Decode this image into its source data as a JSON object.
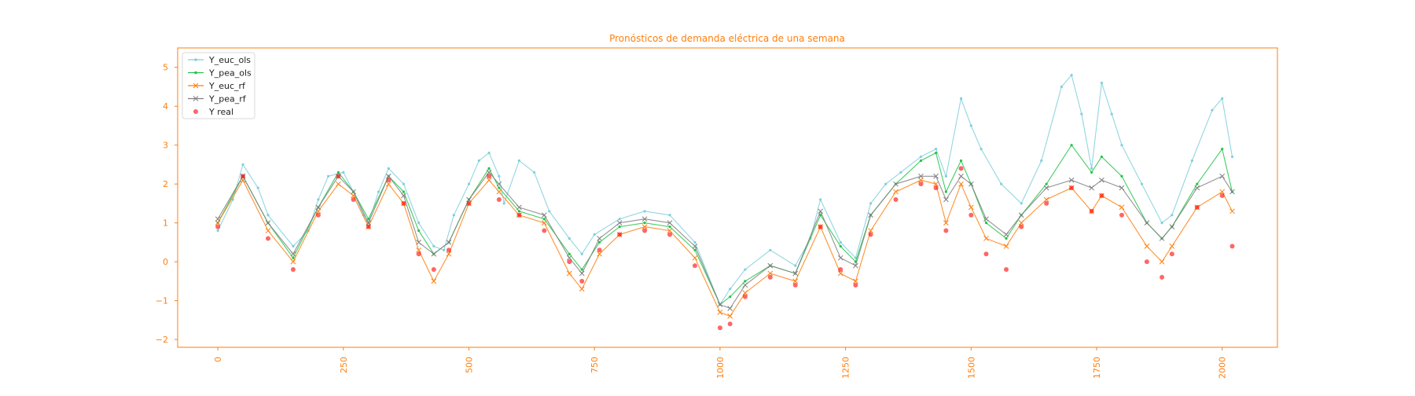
{
  "chart_data": {
    "type": "line",
    "title": "Pronósticos de demanda eléctrica de una semana",
    "xlabel": "",
    "ylabel": "",
    "xlim": [
      -80,
      2110
    ],
    "ylim": [
      -2.2,
      5.5
    ],
    "xticks": [
      0,
      250,
      500,
      750,
      1000,
      1250,
      1500,
      1750,
      2000
    ],
    "xtick_labels": [
      "0",
      "250",
      "500",
      "750",
      "1000",
      "1250",
      "1500",
      "1750",
      "2000"
    ],
    "yticks": [
      -2,
      -1,
      0,
      1,
      2,
      3,
      4,
      5
    ],
    "ytick_labels": [
      "−2",
      "−1",
      "0",
      "1",
      "2",
      "3",
      "4",
      "5"
    ],
    "grid": false,
    "legend_position": "top-left",
    "series": [
      {
        "name": "Y_euc_ols",
        "color": "#7fcfdc",
        "marker": "dot",
        "x": [
          0,
          30,
          50,
          80,
          100,
          150,
          180,
          200,
          220,
          250,
          270,
          290,
          300,
          320,
          340,
          370,
          400,
          430,
          450,
          470,
          500,
          520,
          540,
          560,
          570,
          600,
          630,
          660,
          700,
          725,
          750,
          800,
          850,
          900,
          950,
          1000,
          1020,
          1050,
          1100,
          1150,
          1180,
          1200,
          1240,
          1270,
          1300,
          1330,
          1360,
          1400,
          1430,
          1450,
          1480,
          1500,
          1520,
          1560,
          1600,
          1640,
          1680,
          1700,
          1720,
          1740,
          1760,
          1780,
          1800,
          1840,
          1880,
          1900,
          1940,
          1980,
          2000,
          2020
        ],
        "y": [
          0.8,
          1.6,
          2.5,
          1.9,
          1.2,
          0.4,
          0.8,
          1.6,
          2.2,
          2.3,
          1.8,
          1.2,
          1.0,
          1.8,
          2.4,
          2.0,
          1.0,
          0.4,
          0.3,
          1.2,
          2.0,
          2.6,
          2.8,
          2.2,
          1.5,
          2.6,
          2.3,
          1.3,
          0.6,
          0.2,
          0.7,
          1.1,
          1.3,
          1.2,
          0.5,
          -1.1,
          -0.7,
          -0.2,
          0.3,
          -0.1,
          0.6,
          1.6,
          0.5,
          0.1,
          1.5,
          2.0,
          2.3,
          2.7,
          2.9,
          2.2,
          4.2,
          3.5,
          2.9,
          2.0,
          1.5,
          2.6,
          4.5,
          4.8,
          3.8,
          2.4,
          4.6,
          3.8,
          3.0,
          2.0,
          1.0,
          1.2,
          2.6,
          3.9,
          4.2,
          2.7
        ]
      },
      {
        "name": "Y_pea_ols",
        "color": "#22c44a",
        "marker": "dot",
        "x": [
          0,
          50,
          100,
          150,
          200,
          240,
          270,
          300,
          340,
          370,
          400,
          430,
          460,
          500,
          540,
          560,
          600,
          650,
          700,
          725,
          760,
          800,
          850,
          900,
          950,
          1000,
          1020,
          1050,
          1100,
          1150,
          1200,
          1240,
          1270,
          1300,
          1350,
          1400,
          1430,
          1450,
          1480,
          1500,
          1530,
          1570,
          1600,
          1650,
          1700,
          1740,
          1760,
          1800,
          1850,
          1880,
          1900,
          1950,
          2000,
          2020
        ],
        "y": [
          1.0,
          2.2,
          1.0,
          0.1,
          1.4,
          2.3,
          1.8,
          1.1,
          2.2,
          1.8,
          0.8,
          0.2,
          0.5,
          1.6,
          2.4,
          1.9,
          1.3,
          1.1,
          0.2,
          -0.2,
          0.5,
          0.9,
          1.0,
          0.9,
          0.3,
          -1.1,
          -0.9,
          -0.5,
          -0.1,
          -0.3,
          1.2,
          0.4,
          0.0,
          1.2,
          2.0,
          2.6,
          2.8,
          1.8,
          2.6,
          2.0,
          1.0,
          0.6,
          1.2,
          2.0,
          3.0,
          2.3,
          2.7,
          2.2,
          1.0,
          0.6,
          0.9,
          2.0,
          2.9,
          1.8
        ]
      },
      {
        "name": "Y_euc_rf",
        "color": "#ff7f0e",
        "marker": "x",
        "x": [
          0,
          50,
          100,
          150,
          200,
          240,
          270,
          300,
          340,
          370,
          400,
          430,
          460,
          500,
          540,
          560,
          600,
          650,
          700,
          725,
          760,
          800,
          850,
          900,
          950,
          1000,
          1020,
          1050,
          1100,
          1150,
          1200,
          1240,
          1270,
          1300,
          1350,
          1400,
          1430,
          1450,
          1480,
          1500,
          1530,
          1570,
          1600,
          1650,
          1700,
          1740,
          1760,
          1800,
          1850,
          1880,
          1900,
          1950,
          2000,
          2020
        ],
        "y": [
          1.0,
          2.1,
          0.8,
          0.0,
          1.3,
          2.0,
          1.7,
          0.9,
          2.0,
          1.5,
          0.3,
          -0.5,
          0.2,
          1.5,
          2.1,
          1.8,
          1.2,
          1.0,
          -0.3,
          -0.7,
          0.2,
          0.7,
          0.9,
          0.8,
          0.1,
          -1.3,
          -1.4,
          -0.8,
          -0.3,
          -0.5,
          0.9,
          -0.3,
          -0.5,
          0.8,
          1.8,
          2.1,
          2.0,
          1.0,
          2.0,
          1.4,
          0.6,
          0.4,
          1.0,
          1.6,
          1.9,
          1.3,
          1.7,
          1.4,
          0.4,
          0.0,
          0.4,
          1.4,
          1.8,
          1.3
        ]
      },
      {
        "name": "Y_pea_rf",
        "color": "#808080",
        "marker": "x",
        "x": [
          0,
          50,
          100,
          150,
          200,
          240,
          270,
          300,
          340,
          370,
          400,
          430,
          460,
          500,
          540,
          560,
          600,
          650,
          700,
          725,
          760,
          800,
          850,
          900,
          950,
          1000,
          1020,
          1050,
          1100,
          1150,
          1200,
          1240,
          1270,
          1300,
          1350,
          1400,
          1430,
          1450,
          1480,
          1500,
          1530,
          1570,
          1600,
          1650,
          1700,
          1740,
          1760,
          1800,
          1850,
          1880,
          1900,
          1950,
          2000,
          2020
        ],
        "y": [
          1.1,
          2.2,
          1.0,
          0.2,
          1.4,
          2.2,
          1.8,
          1.0,
          2.2,
          1.7,
          0.5,
          0.2,
          0.5,
          1.6,
          2.3,
          2.0,
          1.4,
          1.2,
          0.1,
          -0.3,
          0.6,
          1.0,
          1.1,
          1.0,
          0.4,
          -1.1,
          -1.2,
          -0.6,
          -0.1,
          -0.3,
          1.3,
          0.1,
          -0.1,
          1.2,
          2.0,
          2.2,
          2.2,
          1.6,
          2.2,
          2.0,
          1.1,
          0.7,
          1.2,
          1.9,
          2.1,
          1.9,
          2.1,
          1.9,
          1.0,
          0.6,
          0.9,
          1.9,
          2.2,
          1.8
        ]
      },
      {
        "name": "Y real",
        "color": "#ff0000",
        "marker": "circle",
        "scatter": true,
        "x": [
          0,
          50,
          100,
          150,
          200,
          240,
          270,
          300,
          340,
          370,
          400,
          430,
          460,
          500,
          540,
          560,
          600,
          650,
          700,
          725,
          760,
          800,
          850,
          900,
          950,
          1000,
          1020,
          1050,
          1100,
          1150,
          1200,
          1240,
          1270,
          1300,
          1350,
          1400,
          1430,
          1450,
          1480,
          1500,
          1530,
          1570,
          1600,
          1650,
          1700,
          1740,
          1760,
          1800,
          1850,
          1880,
          1900,
          1950,
          2000,
          2020
        ],
        "y": [
          0.9,
          2.2,
          0.6,
          -0.2,
          1.2,
          2.2,
          1.6,
          0.9,
          2.1,
          1.5,
          0.2,
          -0.2,
          0.3,
          1.5,
          2.2,
          1.6,
          1.2,
          0.8,
          0.0,
          -0.5,
          0.3,
          0.7,
          0.8,
          0.7,
          -0.1,
          -1.7,
          -1.6,
          -0.9,
          -0.4,
          -0.6,
          0.9,
          -0.2,
          -0.6,
          0.7,
          1.6,
          2.0,
          1.9,
          0.8,
          2.4,
          1.2,
          0.2,
          -0.2,
          0.9,
          1.5,
          1.9,
          1.3,
          1.7,
          1.2,
          0.0,
          -0.4,
          0.2,
          1.4,
          1.7,
          0.4
        ]
      }
    ]
  }
}
